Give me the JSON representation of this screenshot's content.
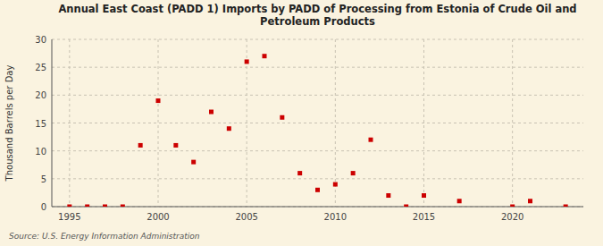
{
  "chart_data": {
    "type": "scatter",
    "title": "Annual East Coast (PADD 1) Imports by PADD of Processing from Estonia of Crude Oil and\nPetroleum Products",
    "ylabel": "Thousand Barrels per Day",
    "source": "Source: U.S. Energy Information Administration",
    "x": [
      1995,
      1996,
      1997,
      1998,
      1999,
      2000,
      2001,
      2002,
      2003,
      2004,
      2005,
      2006,
      2007,
      2008,
      2009,
      2010,
      2011,
      2012,
      2013,
      2014,
      2015,
      2017,
      2020,
      2021,
      2023
    ],
    "values": [
      0,
      0,
      0,
      0,
      11,
      19,
      11,
      8,
      17,
      14,
      26,
      27,
      16,
      6,
      3,
      4,
      6,
      12,
      2,
      0,
      2,
      1,
      0,
      1,
      0
    ],
    "color": "#cc0000",
    "marker": "square",
    "xlim": [
      1994,
      2024
    ],
    "ylim": [
      0,
      30
    ],
    "xticks": [
      1995,
      2000,
      2005,
      2010,
      2015,
      2020
    ],
    "yticks": [
      0,
      5,
      10,
      15,
      20,
      25,
      30
    ],
    "grid": true
  }
}
